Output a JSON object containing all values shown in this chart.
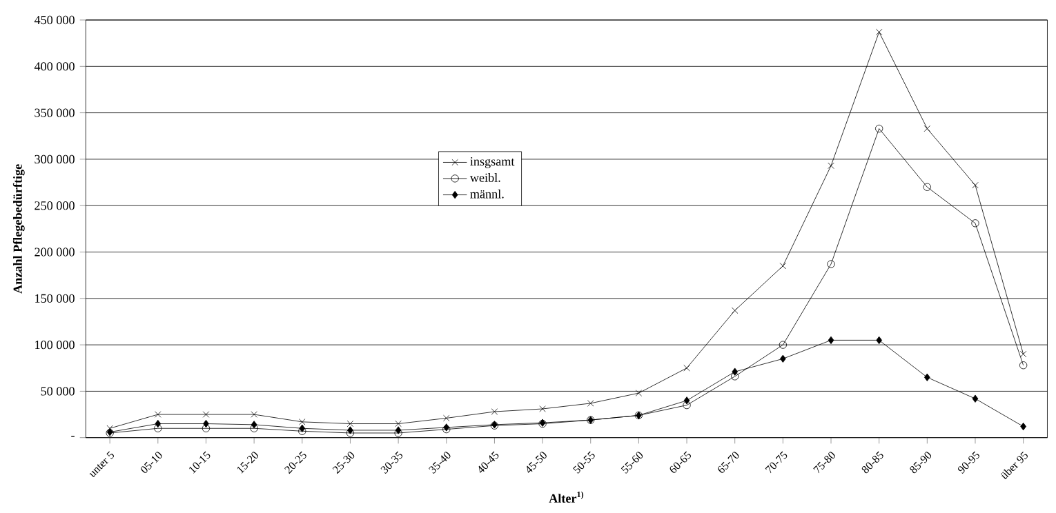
{
  "chart_data": {
    "type": "line",
    "xlabel": "Alter$^{1)}$",
    "ylabel": "Anzahl Pflegebedürftige",
    "categories": [
      "unter 5",
      "05-10",
      "10-15",
      "15-20",
      "20-25",
      "25-30",
      "30-35",
      "35-40",
      "40-45",
      "45-50",
      "50-55",
      "55-60",
      "60-65",
      "65-70",
      "70-75",
      "75-80",
      "80-85",
      "85-90",
      "90-95",
      "über 95"
    ],
    "series": [
      {
        "name": "insgsamt",
        "color": "#000000",
        "marker": "cross",
        "values": [
          10000,
          25000,
          25000,
          25000,
          17000,
          15000,
          15000,
          21000,
          28000,
          31000,
          37000,
          48000,
          75000,
          137000,
          185000,
          293000,
          437000,
          333000,
          272000,
          90000
        ]
      },
      {
        "name": "weibl.",
        "color": "#000000",
        "marker": "circle",
        "values": [
          5000,
          10000,
          10000,
          10000,
          7000,
          5000,
          5000,
          9000,
          13000,
          15000,
          19000,
          24000,
          35000,
          66000,
          100000,
          187000,
          333000,
          270000,
          231000,
          78000
        ]
      },
      {
        "name": "männl.",
        "color": "#000000",
        "marker": "diamond",
        "values": [
          6000,
          15000,
          15000,
          14000,
          10000,
          8000,
          8000,
          11000,
          14000,
          16000,
          19000,
          24000,
          40000,
          71000,
          85000,
          105000,
          105000,
          65000,
          42000,
          12000
        ]
      }
    ],
    "ylim": [
      0,
      450000
    ],
    "yticks": [
      {
        "value": 0,
        "label": "-"
      },
      {
        "value": 50000,
        "label": "50 000"
      },
      {
        "value": 100000,
        "label": "100 000"
      },
      {
        "value": 150000,
        "label": "150 000"
      },
      {
        "value": 200000,
        "label": "200 000"
      },
      {
        "value": 250000,
        "label": "250 000"
      },
      {
        "value": 300000,
        "label": "300 000"
      },
      {
        "value": 350000,
        "label": "350 000"
      },
      {
        "value": 400000,
        "label": "400 000"
      },
      {
        "value": 450000,
        "label": "450 000"
      }
    ],
    "grid": "y",
    "legend": "center",
    "line_style": "solid"
  }
}
